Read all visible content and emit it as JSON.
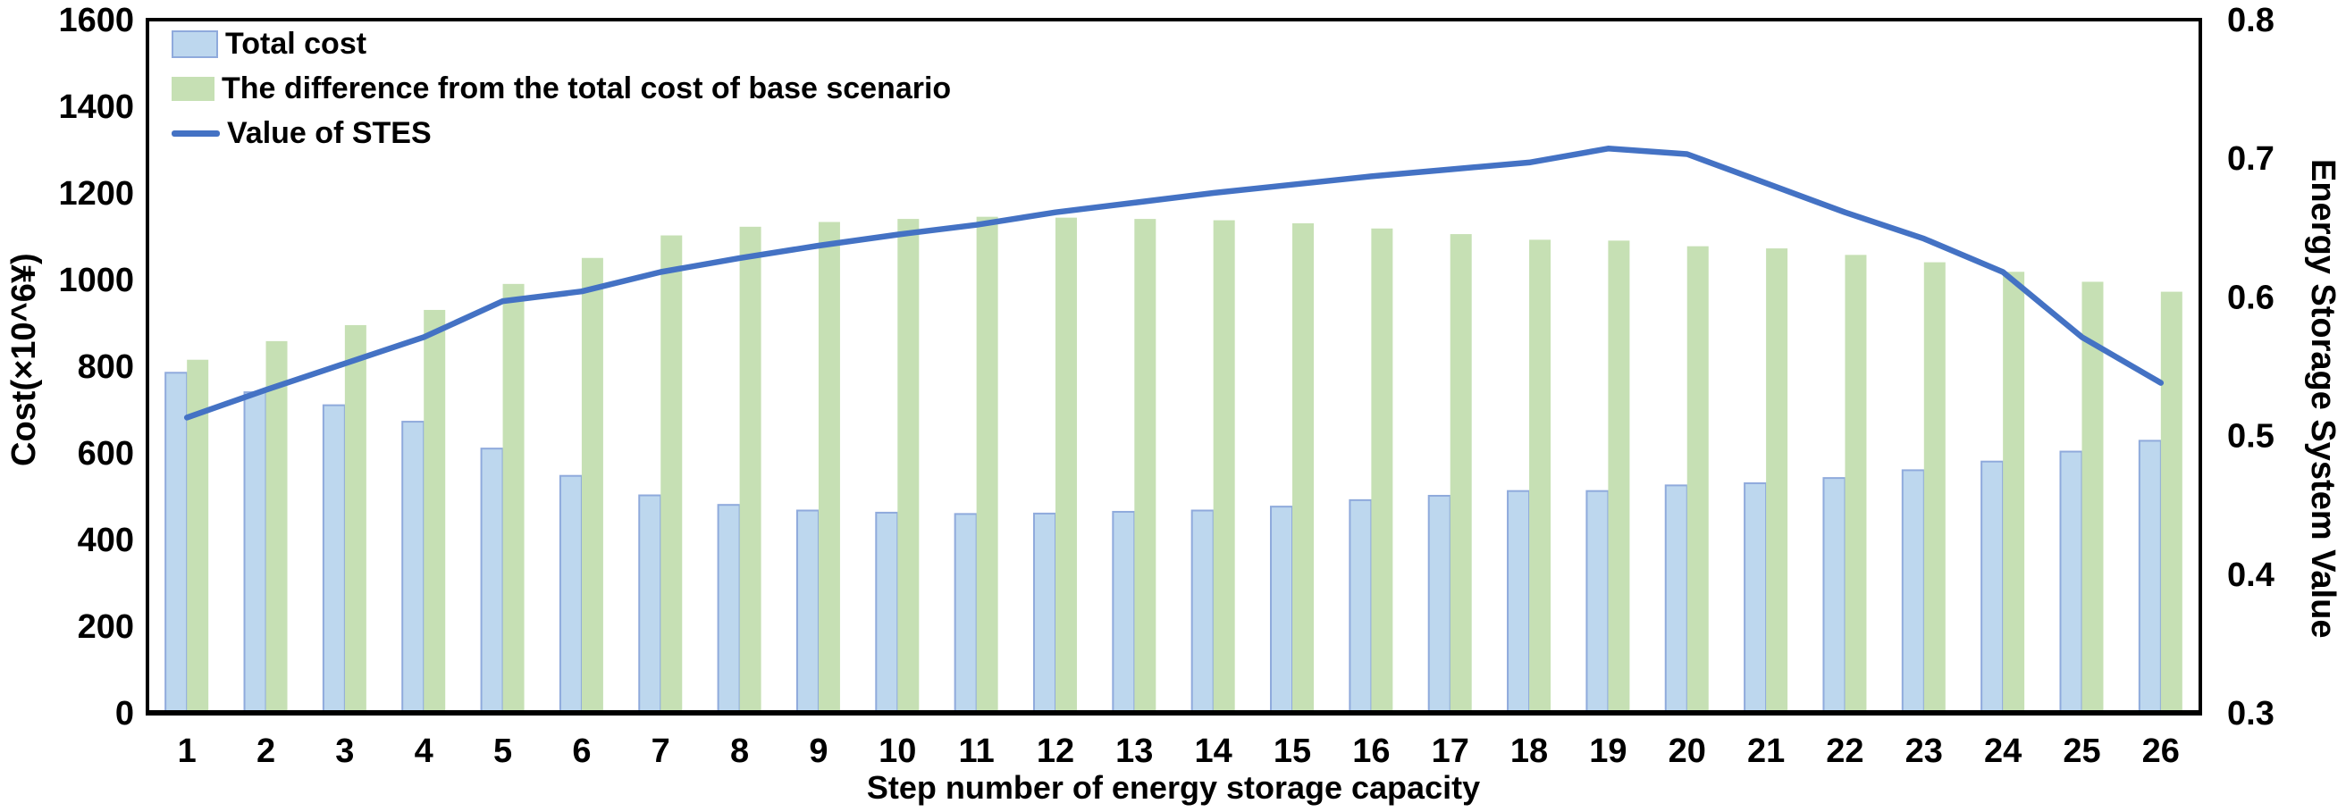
{
  "chart_data": {
    "type": "combo-bar-line",
    "title": "",
    "categories": [
      1,
      2,
      3,
      4,
      5,
      6,
      7,
      8,
      9,
      10,
      11,
      12,
      13,
      14,
      15,
      16,
      17,
      18,
      19,
      20,
      21,
      22,
      23,
      24,
      25,
      26
    ],
    "series": [
      {
        "name": "Total cost",
        "type": "bar",
        "axis": "left",
        "color": "#BDD7EE",
        "border_color": "#8FAADC",
        "values": [
          785,
          740,
          710,
          672,
          610,
          547,
          502,
          480,
          467,
          462,
          459,
          460,
          464,
          467,
          476,
          491,
          501,
          512,
          512,
          525,
          530,
          542,
          560,
          580,
          603,
          628
        ]
      },
      {
        "name": "The difference from the total cost of base scenario",
        "type": "bar",
        "axis": "left",
        "color": "#C6E0B4",
        "border_color": "#C6E0B4",
        "values": [
          815,
          858,
          895,
          930,
          990,
          1050,
          1102,
          1122,
          1133,
          1140,
          1145,
          1143,
          1140,
          1137,
          1130,
          1118,
          1105,
          1092,
          1090,
          1077,
          1072,
          1057,
          1040,
          1018,
          995,
          972
        ]
      },
      {
        "name": "Value of STES",
        "type": "line",
        "axis": "right",
        "color": "#4472C4",
        "values": [
          0.513,
          0.533,
          0.552,
          0.571,
          0.597,
          0.604,
          0.618,
          0.628,
          0.637,
          0.645,
          0.652,
          0.661,
          0.668,
          0.675,
          0.681,
          0.687,
          0.692,
          0.697,
          0.707,
          0.703,
          0.682,
          0.661,
          0.642,
          0.618,
          0.571,
          0.538
        ]
      }
    ],
    "left_axis": {
      "label": "Cost(×10^6¥)",
      "min": 0,
      "max": 1600,
      "step": 200,
      "tick_labels": [
        "0",
        "200",
        "400",
        "600",
        "800",
        "1000",
        "1200",
        "1400",
        "1600"
      ]
    },
    "right_axis": {
      "label": "Energy Storage System Value",
      "min": 0.3,
      "max": 0.8,
      "step": 0.1,
      "tick_labels": [
        "0.3",
        "0.4",
        "0.5",
        "0.6",
        "0.7",
        "0.8"
      ]
    },
    "x_axis": {
      "label": "Step number of energy storage capacity"
    },
    "legend_position": "top-left-inside",
    "grid": false,
    "frame_color": "#000000",
    "background": "#ffffff"
  }
}
